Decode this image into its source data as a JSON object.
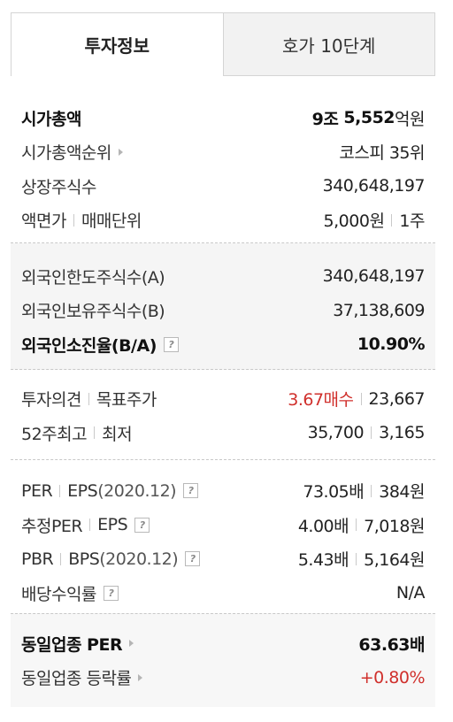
{
  "tabs": [
    "투자정보",
    "호가 10단계"
  ],
  "market": {
    "cap_label": "시가총액",
    "cap_value_pre": "9조 ",
    "cap_value_num": "5,552",
    "cap_value_unit": "억원",
    "rank_label": "시가총액순위",
    "rank_value": "코스피 35위",
    "shares_label": "상장주식수",
    "shares_value": "340,648,197",
    "par_label": "액면가",
    "unit_label": "매매단위",
    "par_value": "5,000원",
    "unit_value": "1주"
  },
  "foreign": {
    "limit_label": "외국인한도주식수(A)",
    "limit_value": "340,648,197",
    "hold_label": "외국인보유주식수(B)",
    "hold_value": "37,138,609",
    "ratio_label": "외국인소진율(B/A)",
    "ratio_value": "10.90%"
  },
  "opinion": {
    "opinion_label": "투자의견",
    "target_label": "목표주가",
    "opinion_value": "3.67매수",
    "target_value": "23,667",
    "high_label": "52주최고",
    "low_label": "최저",
    "high_value": "35,700",
    "low_value": "3,165"
  },
  "valuation": {
    "per_label": "PER",
    "eps_label": "EPS",
    "eps_period": "(2020.12)",
    "per_value": "73.05배",
    "eps_value": "384원",
    "est_per_label": "추정PER",
    "est_eps_label": "EPS",
    "est_per_value": "4.00배",
    "est_eps_value": "7,018원",
    "pbr_label": "PBR",
    "bps_label": "BPS",
    "bps_period": "(2020.12)",
    "pbr_value": "5.43배",
    "bps_value": "5,164원",
    "div_label": "배당수익률",
    "div_value": "N/A"
  },
  "sector": {
    "per_label": "동일업종 PER",
    "per_value": "63.63배",
    "change_label": "동일업종 등락률",
    "change_value": "+0.80%"
  },
  "help_glyph": "?",
  "colors": {
    "up": "#d0302c",
    "border": "#d4d4d4"
  }
}
